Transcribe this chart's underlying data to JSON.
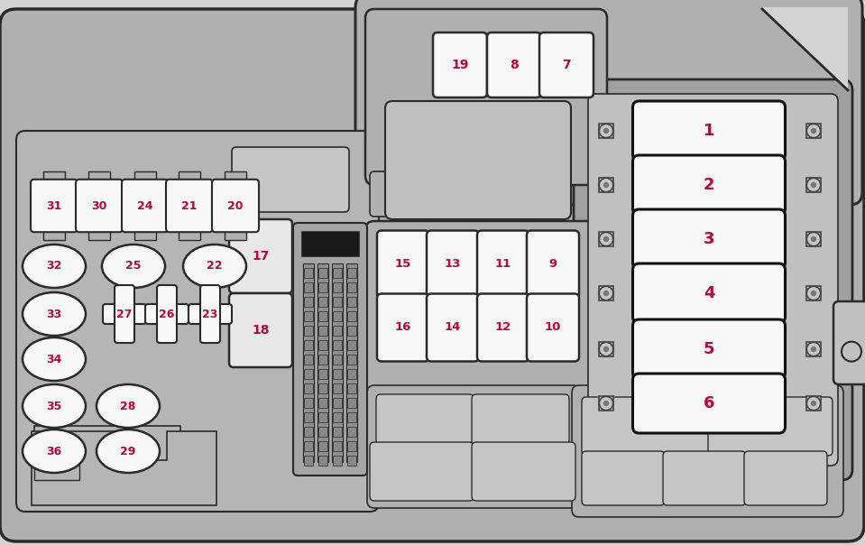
{
  "figsize": [
    9.59,
    6.04
  ],
  "dpi": 100,
  "bg_outer": "#d3d3d3",
  "bg_box": "#b0b0b0",
  "bg_inner": "#a8a8a8",
  "bg_section": "#b8b8b8",
  "fuse_white": "#f8f8f8",
  "fuse_relay": "#e8e8e8",
  "outline": "#2a2a2a",
  "text_color": "#b5003d",
  "bolt_fill": "#787878",
  "bolt_outline": "#444444",
  "connector_dark": "#666666",
  "connector_pin": "#888888",
  "black_bar": "#1a1a1a"
}
